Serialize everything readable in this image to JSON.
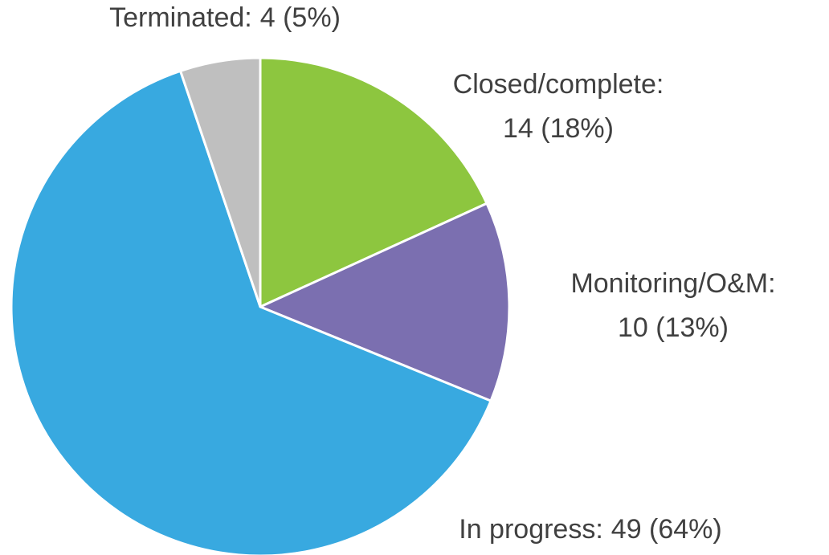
{
  "chart_data": {
    "type": "pie",
    "categories": [
      "Closed/complete:",
      "Monitoring/O&M:",
      "In progress:",
      "Terminated:"
    ],
    "values": [
      14,
      10,
      49,
      4
    ],
    "value_labels": [
      "14 (18%)",
      "10 (13%)",
      "49 (64%)",
      "4 (5%)"
    ],
    "colors": [
      "#8dc63f",
      "#7b6fb0",
      "#38a9e0",
      "#bfbfbf"
    ]
  }
}
